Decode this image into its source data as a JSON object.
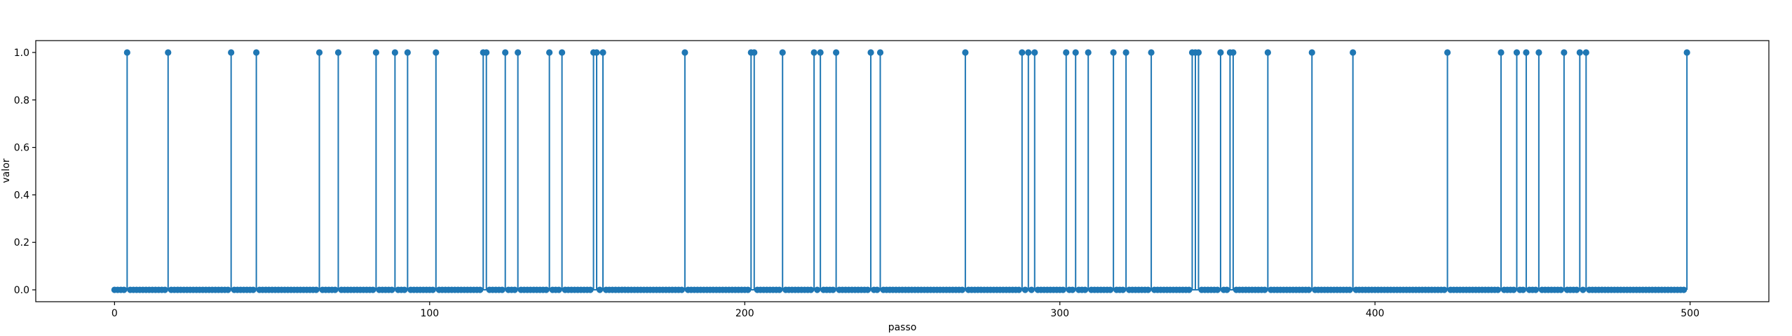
{
  "chart_data": {
    "type": "stem",
    "xlabel": "passo",
    "ylabel": "valor",
    "xlim": [
      -25,
      525
    ],
    "ylim": [
      -0.05,
      1.05
    ],
    "xticks": [
      0,
      100,
      200,
      300,
      400,
      500
    ],
    "xtick_labels": [
      "0",
      "100",
      "200",
      "300",
      "400",
      "500"
    ],
    "yticks": [
      0.0,
      0.2,
      0.4,
      0.6,
      0.8,
      1.0
    ],
    "ytick_labels": [
      "0.0",
      "0.2",
      "0.4",
      "0.6",
      "0.8",
      "1.0"
    ],
    "n_steps": 500,
    "x_start": 0,
    "baseline": 0,
    "default_value": 0,
    "ones_at": [
      4,
      17,
      37,
      45,
      65,
      71,
      83,
      89,
      93,
      102,
      117,
      118,
      124,
      128,
      138,
      142,
      152,
      153,
      155,
      181,
      202,
      203,
      212,
      222,
      224,
      229,
      240,
      243,
      270,
      288,
      290,
      292,
      302,
      305,
      309,
      317,
      321,
      329,
      342,
      343,
      344,
      351,
      354,
      355,
      366,
      380,
      393,
      423,
      440,
      445,
      448,
      452,
      460,
      465,
      467,
      499
    ],
    "grid": false,
    "legend": "none",
    "color": "#1f77b4"
  }
}
